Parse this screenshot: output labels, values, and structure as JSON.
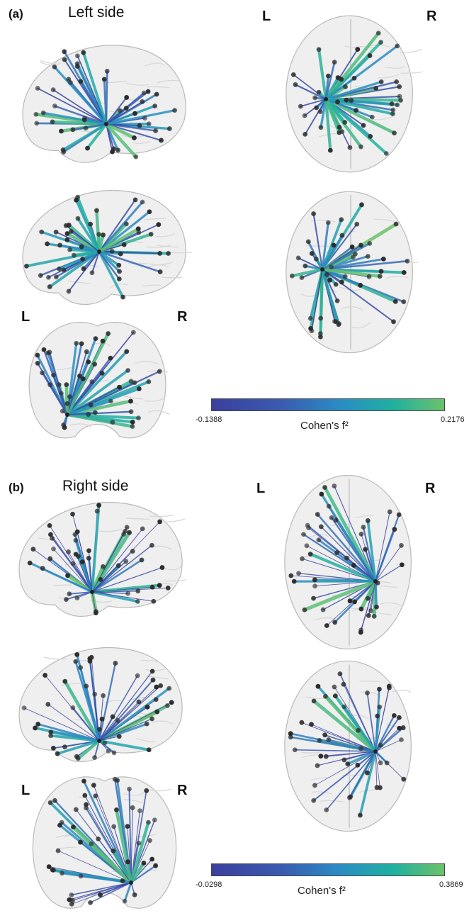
{
  "panel_a": {
    "label": "(a)",
    "title": "Left side",
    "lr_left": "L",
    "lr_right": "R",
    "colorbar": {
      "min": "-0.1388",
      "max": "0.2176",
      "title": "Cohen's f²"
    }
  },
  "panel_b": {
    "label": "(b)",
    "title": "Right side",
    "lr_left": "L",
    "lr_right": "R",
    "colorbar": {
      "min": "-0.0298",
      "max": "0.3869",
      "title": "Cohen's f²"
    }
  },
  "colors": {
    "low": "#3b3f9e",
    "mid": "#2b8cc4",
    "high": "#6cc26a",
    "node": "#2a2a2a"
  }
}
